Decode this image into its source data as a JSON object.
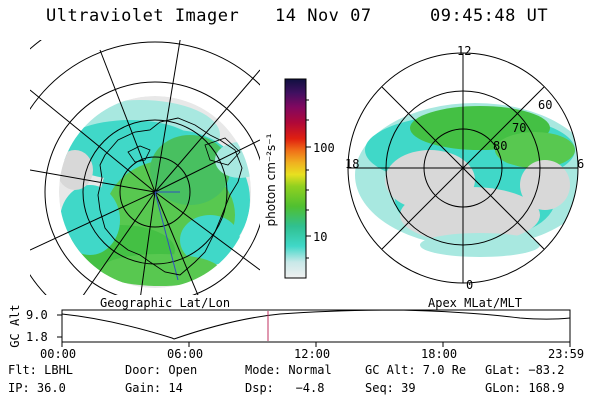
{
  "header": {
    "title": "Ultraviolet Imager",
    "date": "14 Nov 07",
    "time": "09:45:48 UT"
  },
  "colorbar": {
    "label": "photon cm⁻²s⁻¹",
    "ticks": [
      "100",
      "10"
    ]
  },
  "left_panel": {
    "label": "Geographic Lat/Lon"
  },
  "right_panel": {
    "label": "Apex MLat/MLT",
    "mlt_labels": {
      "top": "12",
      "left": "18",
      "right": "6",
      "bottom": "0"
    },
    "lat_labels": [
      "60",
      "70",
      "80"
    ]
  },
  "altitude_plot": {
    "ylabel": "GC Alt",
    "yticks": [
      "9.0",
      "1.8"
    ],
    "xticks": [
      "00:00",
      "06:00",
      "12:00",
      "18:00",
      "23:59"
    ]
  },
  "info": {
    "filter": "Flt: LBHL",
    "door": "Door: Open",
    "mode": "Mode: Normal",
    "gc_alt": "GC Alt: 7.0 Re",
    "glat": "GLat: −83.2",
    "ip": "IP: 36.0",
    "gain": "Gain: 14",
    "dsp": "Dsp:   −4.8",
    "seq": "Seq: 39",
    "glon": "GLon: 168.9"
  },
  "colors": {
    "aurora_green": "#44c044",
    "aurora_cyan": "#40d8c8",
    "aurora_light": "#a8e8e0",
    "aurora_grey": "#d8d8d8",
    "time_marker": "#c03060"
  }
}
